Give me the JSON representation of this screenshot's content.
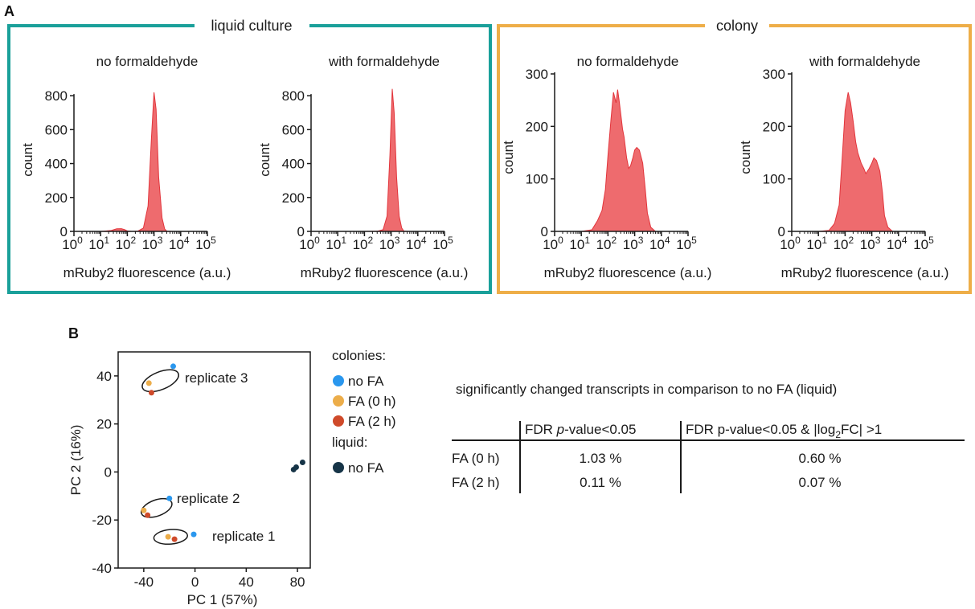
{
  "panel_a": {
    "letter": "A",
    "group_liquid": "liquid culture",
    "group_colony": "colony",
    "colors": {
      "liquid_frame": "#1aa09a",
      "colony_frame": "#eeae48",
      "hist_fill": "#ee6b6e",
      "hist_stroke": "#e2353c"
    },
    "x_tick_base": "10",
    "x_tick_exponents": [
      "0",
      "1",
      "2",
      "3",
      "4",
      "5"
    ]
  },
  "panel_b": {
    "letter": "B",
    "legend": {
      "colonies_heading": "colonies:",
      "liquid_heading": "liquid:",
      "items": [
        {
          "label": "no FA",
          "color": "#2a97ee"
        },
        {
          "label": "FA (0 h)",
          "color": "#ecad4a"
        },
        {
          "label": "FA (2 h)",
          "color": "#cf4a2a"
        },
        {
          "label": "no FA",
          "color": "#163447"
        }
      ]
    },
    "replicate_labels": [
      "replicate 3",
      "replicate 2",
      "replicate 1"
    ]
  },
  "table": {
    "title": "significantly changed transcripts in comparison to no FA (liquid)",
    "col1_header_pre": "FDR ",
    "col1_header_italic": "p",
    "col1_header_post": "-value<0.05",
    "col2_header_pre": "FDR p-value<0.05 & |log",
    "col2_header_sub": "2",
    "col2_header_post": "FC| >1",
    "rows": [
      {
        "label": "FA (0 h)",
        "v1": "1.03 %",
        "v2": "0.60 %"
      },
      {
        "label": "FA (2 h)",
        "v1": "0.11 %",
        "v2": "0.07 %"
      }
    ]
  },
  "chart_data": [
    {
      "type": "area",
      "title": "no formaldehyde",
      "xlabel": "mRuby2 fluorescence (a.u.)",
      "ylabel": "count",
      "x_scale": "log",
      "xlim": [
        1,
        100000
      ],
      "ylim": [
        0,
        900
      ],
      "yticks": [
        0,
        200,
        400,
        600,
        800
      ],
      "x": [
        1,
        10,
        25,
        40,
        60,
        80,
        100,
        150,
        250,
        400,
        600,
        800,
        1000,
        1200,
        1500,
        2000,
        2500,
        3000,
        5000,
        100000
      ],
      "y": [
        0,
        0,
        5,
        15,
        16,
        10,
        3,
        0,
        2,
        20,
        150,
        550,
        820,
        720,
        320,
        80,
        15,
        2,
        0,
        0
      ]
    },
    {
      "type": "area",
      "title": "with formaldehyde",
      "xlabel": "mRuby2 fluorescence (a.u.)",
      "ylabel": "count",
      "x_scale": "log",
      "xlim": [
        1,
        100000
      ],
      "ylim": [
        0,
        900
      ],
      "yticks": [
        0,
        200,
        400,
        600,
        800
      ],
      "x": [
        1,
        10,
        100,
        300,
        500,
        700,
        900,
        1100,
        1300,
        1600,
        2000,
        2500,
        3000,
        5000,
        100000
      ],
      "y": [
        0,
        0,
        0,
        1,
        10,
        90,
        450,
        840,
        700,
        320,
        90,
        20,
        2,
        0,
        0
      ]
    },
    {
      "type": "area",
      "title": "no formaldehyde",
      "xlabel": "mRuby2 fluorescence (a.u.)",
      "ylabel": "count",
      "x_scale": "log",
      "xlim": [
        1,
        100000
      ],
      "ylim": [
        0,
        300
      ],
      "yticks": [
        0,
        100,
        200,
        300
      ],
      "x": [
        1,
        10,
        25,
        40,
        60,
        80,
        100,
        130,
        160,
        200,
        230,
        260,
        300,
        350,
        400,
        500,
        600,
        700,
        850,
        1000,
        1200,
        1500,
        2000,
        2500,
        3000,
        4000,
        6000,
        100000
      ],
      "y": [
        0,
        0,
        3,
        20,
        40,
        80,
        145,
        215,
        265,
        245,
        270,
        250,
        225,
        195,
        180,
        140,
        120,
        125,
        140,
        155,
        160,
        155,
        130,
        80,
        35,
        8,
        0,
        0
      ]
    },
    {
      "type": "area",
      "title": "with formaldehyde",
      "xlabel": "mRuby2 fluorescence (a.u.)",
      "ylabel": "count",
      "x_scale": "log",
      "xlim": [
        1,
        100000
      ],
      "ylim": [
        0,
        300
      ],
      "yticks": [
        0,
        100,
        200,
        300
      ],
      "x": [
        1,
        10,
        25,
        40,
        60,
        80,
        100,
        130,
        160,
        200,
        250,
        300,
        400,
        500,
        600,
        800,
        1000,
        1200,
        1500,
        2000,
        2500,
        3000,
        4000,
        6000,
        100000
      ],
      "y": [
        0,
        0,
        2,
        15,
        50,
        150,
        230,
        265,
        245,
        210,
        170,
        150,
        130,
        120,
        110,
        120,
        130,
        140,
        135,
        115,
        75,
        30,
        8,
        0,
        0
      ]
    },
    {
      "type": "scatter",
      "xlabel": "PC 1 (57%)",
      "ylabel": "PC 2 (16%)",
      "xlim": [
        -60,
        90
      ],
      "ylim": [
        -40,
        50
      ],
      "xticks": [
        -40,
        0,
        40,
        80
      ],
      "yticks": [
        -40,
        -20,
        0,
        20,
        40
      ],
      "series": [
        {
          "name": "no FA",
          "group": "colonies",
          "x": [
            -17,
            -20,
            -1
          ],
          "y": [
            44,
            -11,
            -26
          ]
        },
        {
          "name": "FA (0 h)",
          "group": "colonies",
          "x": [
            -36,
            -40,
            -21
          ],
          "y": [
            37,
            -16,
            -27
          ]
        },
        {
          "name": "FA (2 h)",
          "group": "colonies",
          "x": [
            -34,
            -37,
            -16
          ],
          "y": [
            33,
            -18,
            -28
          ]
        },
        {
          "name": "no FA",
          "group": "liquid",
          "x": [
            77,
            79,
            84
          ],
          "y": [
            1,
            2,
            4
          ]
        }
      ],
      "annotations": [
        "replicate 3",
        "replicate 2",
        "replicate 1"
      ]
    }
  ]
}
